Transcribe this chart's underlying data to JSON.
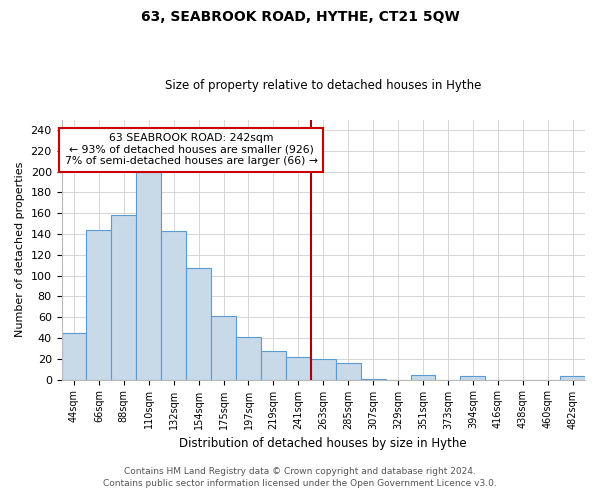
{
  "title": "63, SEABROOK ROAD, HYTHE, CT21 5QW",
  "subtitle": "Size of property relative to detached houses in Hythe",
  "xlabel": "Distribution of detached houses by size in Hythe",
  "ylabel": "Number of detached properties",
  "bar_labels": [
    "44sqm",
    "66sqm",
    "88sqm",
    "110sqm",
    "132sqm",
    "154sqm",
    "175sqm",
    "197sqm",
    "219sqm",
    "241sqm",
    "263sqm",
    "285sqm",
    "307sqm",
    "329sqm",
    "351sqm",
    "373sqm",
    "394sqm",
    "416sqm",
    "438sqm",
    "460sqm",
    "482sqm"
  ],
  "bar_values": [
    45,
    144,
    158,
    200,
    143,
    107,
    61,
    41,
    27,
    22,
    20,
    16,
    1,
    0,
    4,
    0,
    3,
    0,
    0,
    0,
    3
  ],
  "bar_color": "#c8d9e8",
  "bar_edge_color": "#5b9bd5",
  "vline_x": 9.5,
  "vline_color": "#aa0000",
  "ylim": [
    0,
    250
  ],
  "yticks": [
    0,
    20,
    40,
    60,
    80,
    100,
    120,
    140,
    160,
    180,
    200,
    220,
    240
  ],
  "annotation_title": "63 SEABROOK ROAD: 242sqm",
  "annotation_line1": "← 93% of detached houses are smaller (926)",
  "annotation_line2": "7% of semi-detached houses are larger (66) →",
  "annotation_box_color": "#ffffff",
  "annotation_box_edge": "#cc0000",
  "footer_line1": "Contains HM Land Registry data © Crown copyright and database right 2024.",
  "footer_line2": "Contains public sector information licensed under the Open Government Licence v3.0.",
  "bg_color": "#ffffff",
  "grid_color": "#d0d0d0"
}
